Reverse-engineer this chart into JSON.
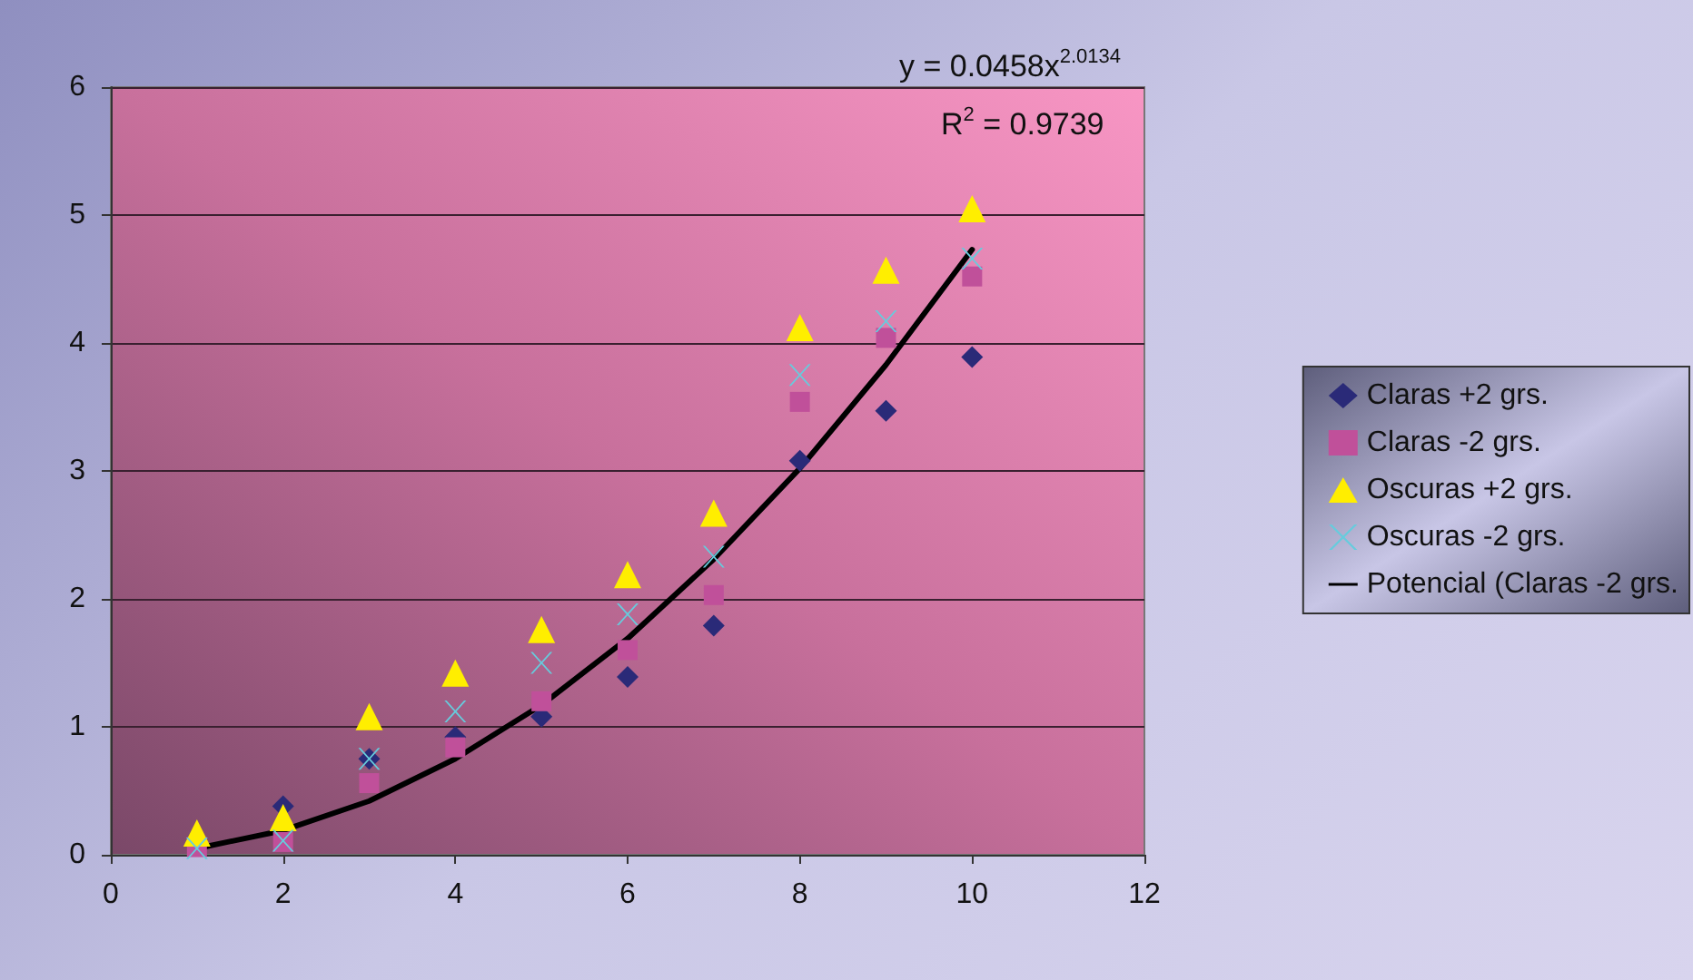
{
  "chart_data": {
    "type": "scatter",
    "annotations": [
      "y = 0.0458x$^{2.0134}$",
      "R$^{2}$ = 0.9739"
    ],
    "xlim": [
      0,
      12
    ],
    "xticks": [
      0,
      2,
      4,
      6,
      8,
      10,
      12
    ],
    "ylim": [
      0,
      6
    ],
    "yticks": [
      0,
      1,
      2,
      3,
      4,
      5,
      6
    ],
    "grid": "y",
    "legend": "right",
    "series": [
      {
        "name": "Claras +2 grs.",
        "color": "#2a2a78",
        "marker": "diamond",
        "x": [
          2,
          3,
          4,
          5,
          6,
          7,
          8,
          9,
          10
        ],
        "values": [
          0.38,
          0.75,
          0.92,
          1.08,
          1.39,
          1.79,
          3.08,
          3.47,
          3.89
        ]
      },
      {
        "name": "Claras -2 grs.",
        "color": "#c0509a",
        "marker": "square",
        "x": [
          1,
          2,
          3,
          4,
          5,
          6,
          7,
          8,
          9,
          10
        ],
        "values": [
          0.06,
          0.1,
          0.56,
          0.84,
          1.2,
          1.6,
          2.03,
          3.54,
          4.04,
          4.52
        ]
      },
      {
        "name": "Oscuras +2 grs.",
        "color": "#ffee00",
        "marker": "triangle",
        "x": [
          1,
          2,
          3,
          4,
          5,
          6,
          7,
          8,
          9,
          10
        ],
        "values": [
          0.17,
          0.29,
          1.08,
          1.42,
          1.76,
          2.19,
          2.67,
          4.12,
          4.57,
          5.05
        ]
      },
      {
        "name": "Oscuras -2 grs.",
        "color": "#66ccdd",
        "marker": "cross",
        "x": [
          1,
          2,
          3,
          4,
          5,
          6,
          7,
          8,
          9,
          10
        ],
        "values": [
          0.05,
          0.11,
          0.75,
          1.12,
          1.5,
          1.88,
          2.33,
          3.75,
          4.17,
          4.66
        ]
      },
      {
        "name": "Potencial (Claras -2 grs.",
        "type": "line",
        "color": "#000000",
        "marker": "none",
        "line_style": "solid",
        "x": [
          1,
          2,
          3,
          4,
          5,
          6,
          7,
          8,
          9,
          10
        ],
        "values": [
          0.05,
          0.19,
          0.42,
          0.75,
          1.17,
          1.69,
          2.31,
          3.02,
          3.83,
          4.73
        ]
      }
    ]
  }
}
